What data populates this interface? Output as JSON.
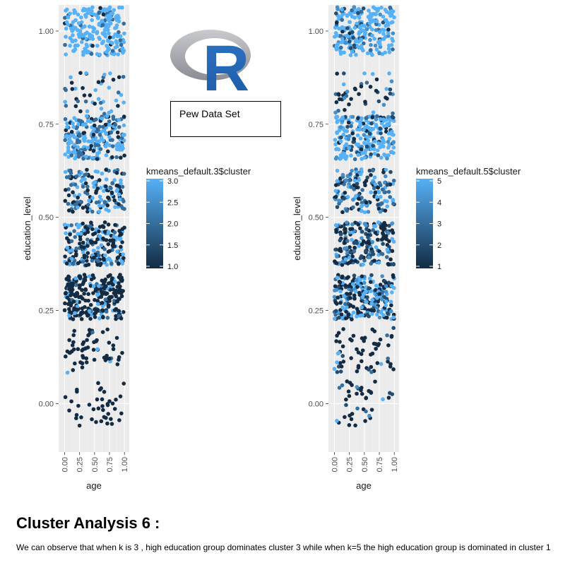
{
  "logo": {
    "letter": "R",
    "colors": {
      "ring": "#9a9ca3",
      "letter": "#2266b8"
    }
  },
  "dataset_label": "Pew Data Set",
  "section": {
    "title": "Cluster Analysis 6 :",
    "body": "We can observe that when k is 3 , high education group dominates cluster 3 while when k=5 the high education group is dominated in cluster 1"
  },
  "chart_data": [
    {
      "type": "scatter",
      "xlabel": "age",
      "ylabel": "education_level",
      "xlim": [
        -0.1,
        1.08
      ],
      "ylim": [
        -0.13,
        1.07
      ],
      "x_ticks": [
        0.0,
        0.25,
        0.5,
        0.75,
        1.0
      ],
      "x_tick_labels": [
        "0.00",
        "0.25",
        "0.50",
        "0.75",
        "1.00"
      ],
      "y_ticks": [
        0.0,
        0.25,
        0.5,
        0.75,
        1.0
      ],
      "y_tick_labels": [
        "0.00",
        "0.25",
        "0.50",
        "0.75",
        "1.00"
      ],
      "grid": true,
      "background": "#ebebeb",
      "legend": {
        "title": "kmeans_default.3$cluster",
        "type": "colorbar",
        "range": [
          1.0,
          3.0
        ],
        "breaks": [
          3.0,
          2.5,
          2.0,
          1.5,
          1.0
        ],
        "break_labels": [
          "3.0",
          "2.5",
          "2.0",
          "1.5",
          "1.0"
        ],
        "low_color": "#132b43",
        "high_color": "#56b1f7",
        "placement": "right"
      },
      "jitter_groups": [
        {
          "y": 1.0,
          "y_spread": 0.065,
          "count": 230,
          "color_mix": [
            0.05,
            0.12,
            0.83
          ]
        },
        {
          "y": 0.833,
          "y_spread": 0.055,
          "count": 45,
          "color_mix": [
            0.45,
            0.15,
            0.4
          ]
        },
        {
          "y": 0.714,
          "y_spread": 0.058,
          "count": 240,
          "color_mix": [
            0.15,
            0.3,
            0.55
          ]
        },
        {
          "y": 0.571,
          "y_spread": 0.058,
          "count": 160,
          "color_mix": [
            0.35,
            0.25,
            0.4
          ]
        },
        {
          "y": 0.429,
          "y_spread": 0.058,
          "count": 220,
          "color_mix": [
            0.55,
            0.15,
            0.3
          ]
        },
        {
          "y": 0.286,
          "y_spread": 0.06,
          "count": 260,
          "color_mix": [
            0.8,
            0.07,
            0.13
          ]
        },
        {
          "y": 0.143,
          "y_spread": 0.06,
          "count": 60,
          "color_mix": [
            0.92,
            0.03,
            0.05
          ]
        },
        {
          "y": 0.0,
          "y_spread": 0.06,
          "count": 40,
          "color_mix": [
            0.98,
            0.02,
            0.0
          ]
        }
      ]
    },
    {
      "type": "scatter",
      "xlabel": "age",
      "ylabel": "education_level",
      "xlim": [
        -0.1,
        1.08
      ],
      "ylim": [
        -0.13,
        1.07
      ],
      "x_ticks": [
        0.0,
        0.25,
        0.5,
        0.75,
        1.0
      ],
      "x_tick_labels": [
        "0.00",
        "0.25",
        "0.50",
        "0.75",
        "1.00"
      ],
      "y_ticks": [
        0.0,
        0.25,
        0.5,
        0.75,
        1.0
      ],
      "y_tick_labels": [
        "0.00",
        "0.25",
        "0.50",
        "0.75",
        "1.00"
      ],
      "grid": true,
      "background": "#ebebeb",
      "legend": {
        "title": "kmeans_default.5$cluster",
        "type": "colorbar",
        "range": [
          1,
          5
        ],
        "breaks": [
          5,
          4,
          3,
          2,
          1
        ],
        "break_labels": [
          "5",
          "4",
          "3",
          "2",
          "1"
        ],
        "low_color": "#132b43",
        "high_color": "#56b1f7",
        "placement": "right"
      },
      "jitter_groups": [
        {
          "y": 1.0,
          "y_spread": 0.065,
          "count": 230,
          "color_mix": [
            0.05,
            0.05,
            0.1,
            0.1,
            0.7
          ]
        },
        {
          "y": 0.833,
          "y_spread": 0.055,
          "count": 45,
          "color_mix": [
            0.4,
            0.2,
            0.1,
            0.1,
            0.2
          ]
        },
        {
          "y": 0.714,
          "y_spread": 0.058,
          "count": 240,
          "color_mix": [
            0.1,
            0.1,
            0.1,
            0.1,
            0.6
          ]
        },
        {
          "y": 0.571,
          "y_spread": 0.058,
          "count": 160,
          "color_mix": [
            0.3,
            0.15,
            0.15,
            0.15,
            0.25
          ]
        },
        {
          "y": 0.429,
          "y_spread": 0.058,
          "count": 220,
          "color_mix": [
            0.45,
            0.2,
            0.1,
            0.1,
            0.15
          ]
        },
        {
          "y": 0.286,
          "y_spread": 0.06,
          "count": 260,
          "color_mix": [
            0.4,
            0.1,
            0.1,
            0.1,
            0.3
          ]
        },
        {
          "y": 0.143,
          "y_spread": 0.06,
          "count": 60,
          "color_mix": [
            0.75,
            0.1,
            0.05,
            0.05,
            0.05
          ]
        },
        {
          "y": 0.0,
          "y_spread": 0.06,
          "count": 40,
          "color_mix": [
            0.7,
            0.1,
            0.1,
            0.05,
            0.05
          ]
        }
      ]
    }
  ]
}
